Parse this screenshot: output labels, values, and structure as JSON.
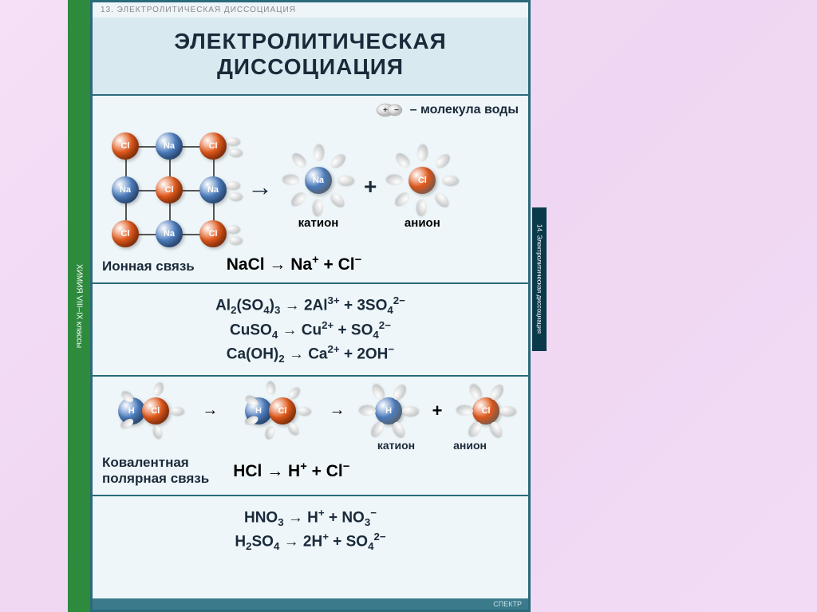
{
  "background_color": "#f2dcf5",
  "poster": {
    "border_color": "#2a6a7a",
    "bg_color": "#e9f3f7",
    "left_tab": {
      "bg": "#2e8b3e",
      "text": "ХИМИЯ VIII–IX классы"
    },
    "topbar": "13. ЭЛЕКТРОЛИТИЧЕСКАЯ ДИССОЦИАЦИЯ",
    "title": {
      "line1": "ЭЛЕКТРОЛИТИЧЕСКАЯ",
      "line2": "ДИССОЦИАЦИЯ"
    },
    "colors": {
      "cation": "#4e7fc1",
      "anion": "#e35a1c",
      "water_shell": "#dcdcdc",
      "text": "#1a2a3a"
    },
    "panel_ionic": {
      "legend_text": "– молекула воды",
      "lattice": {
        "rows": 3,
        "cols": 3,
        "ions": [
          [
            "Cl",
            "Na",
            "Cl"
          ],
          [
            "Na",
            "Cl",
            "Na"
          ],
          [
            "Cl",
            "Na",
            "Cl"
          ]
        ],
        "na_color": "#4e7fc1",
        "cl_color": "#e35a1c"
      },
      "cation_label": "катион",
      "anion_label": "анион",
      "bond_label": "Ионная связь",
      "equation": "NaCl → Na⁺ + Cl⁻"
    },
    "equations1": [
      "Al₂(SO₄)₃ → 2Al³⁺ + 3SO₄²⁻",
      "CuSO₄ → Cu²⁺ + SO₄²⁻",
      "Ca(OH)₂ → Ca²⁺ + 2OH⁻"
    ],
    "panel_covalent": {
      "bond_label_l1": "Ковалентная",
      "bond_label_l2": "полярная связь",
      "cation_label": "катион",
      "anion_label": "анион",
      "h_label": "H",
      "cl_label": "Cl",
      "equation": "HCl → H⁺ + Cl⁻"
    },
    "equations2": [
      "HNO₃ → H⁺ + NO₃⁻",
      "H₂SO₄ → 2H⁺ + SO₄²⁻"
    ],
    "right_tab": "14. Электролитическая диссоциация",
    "footer": "СПЕКТР"
  }
}
